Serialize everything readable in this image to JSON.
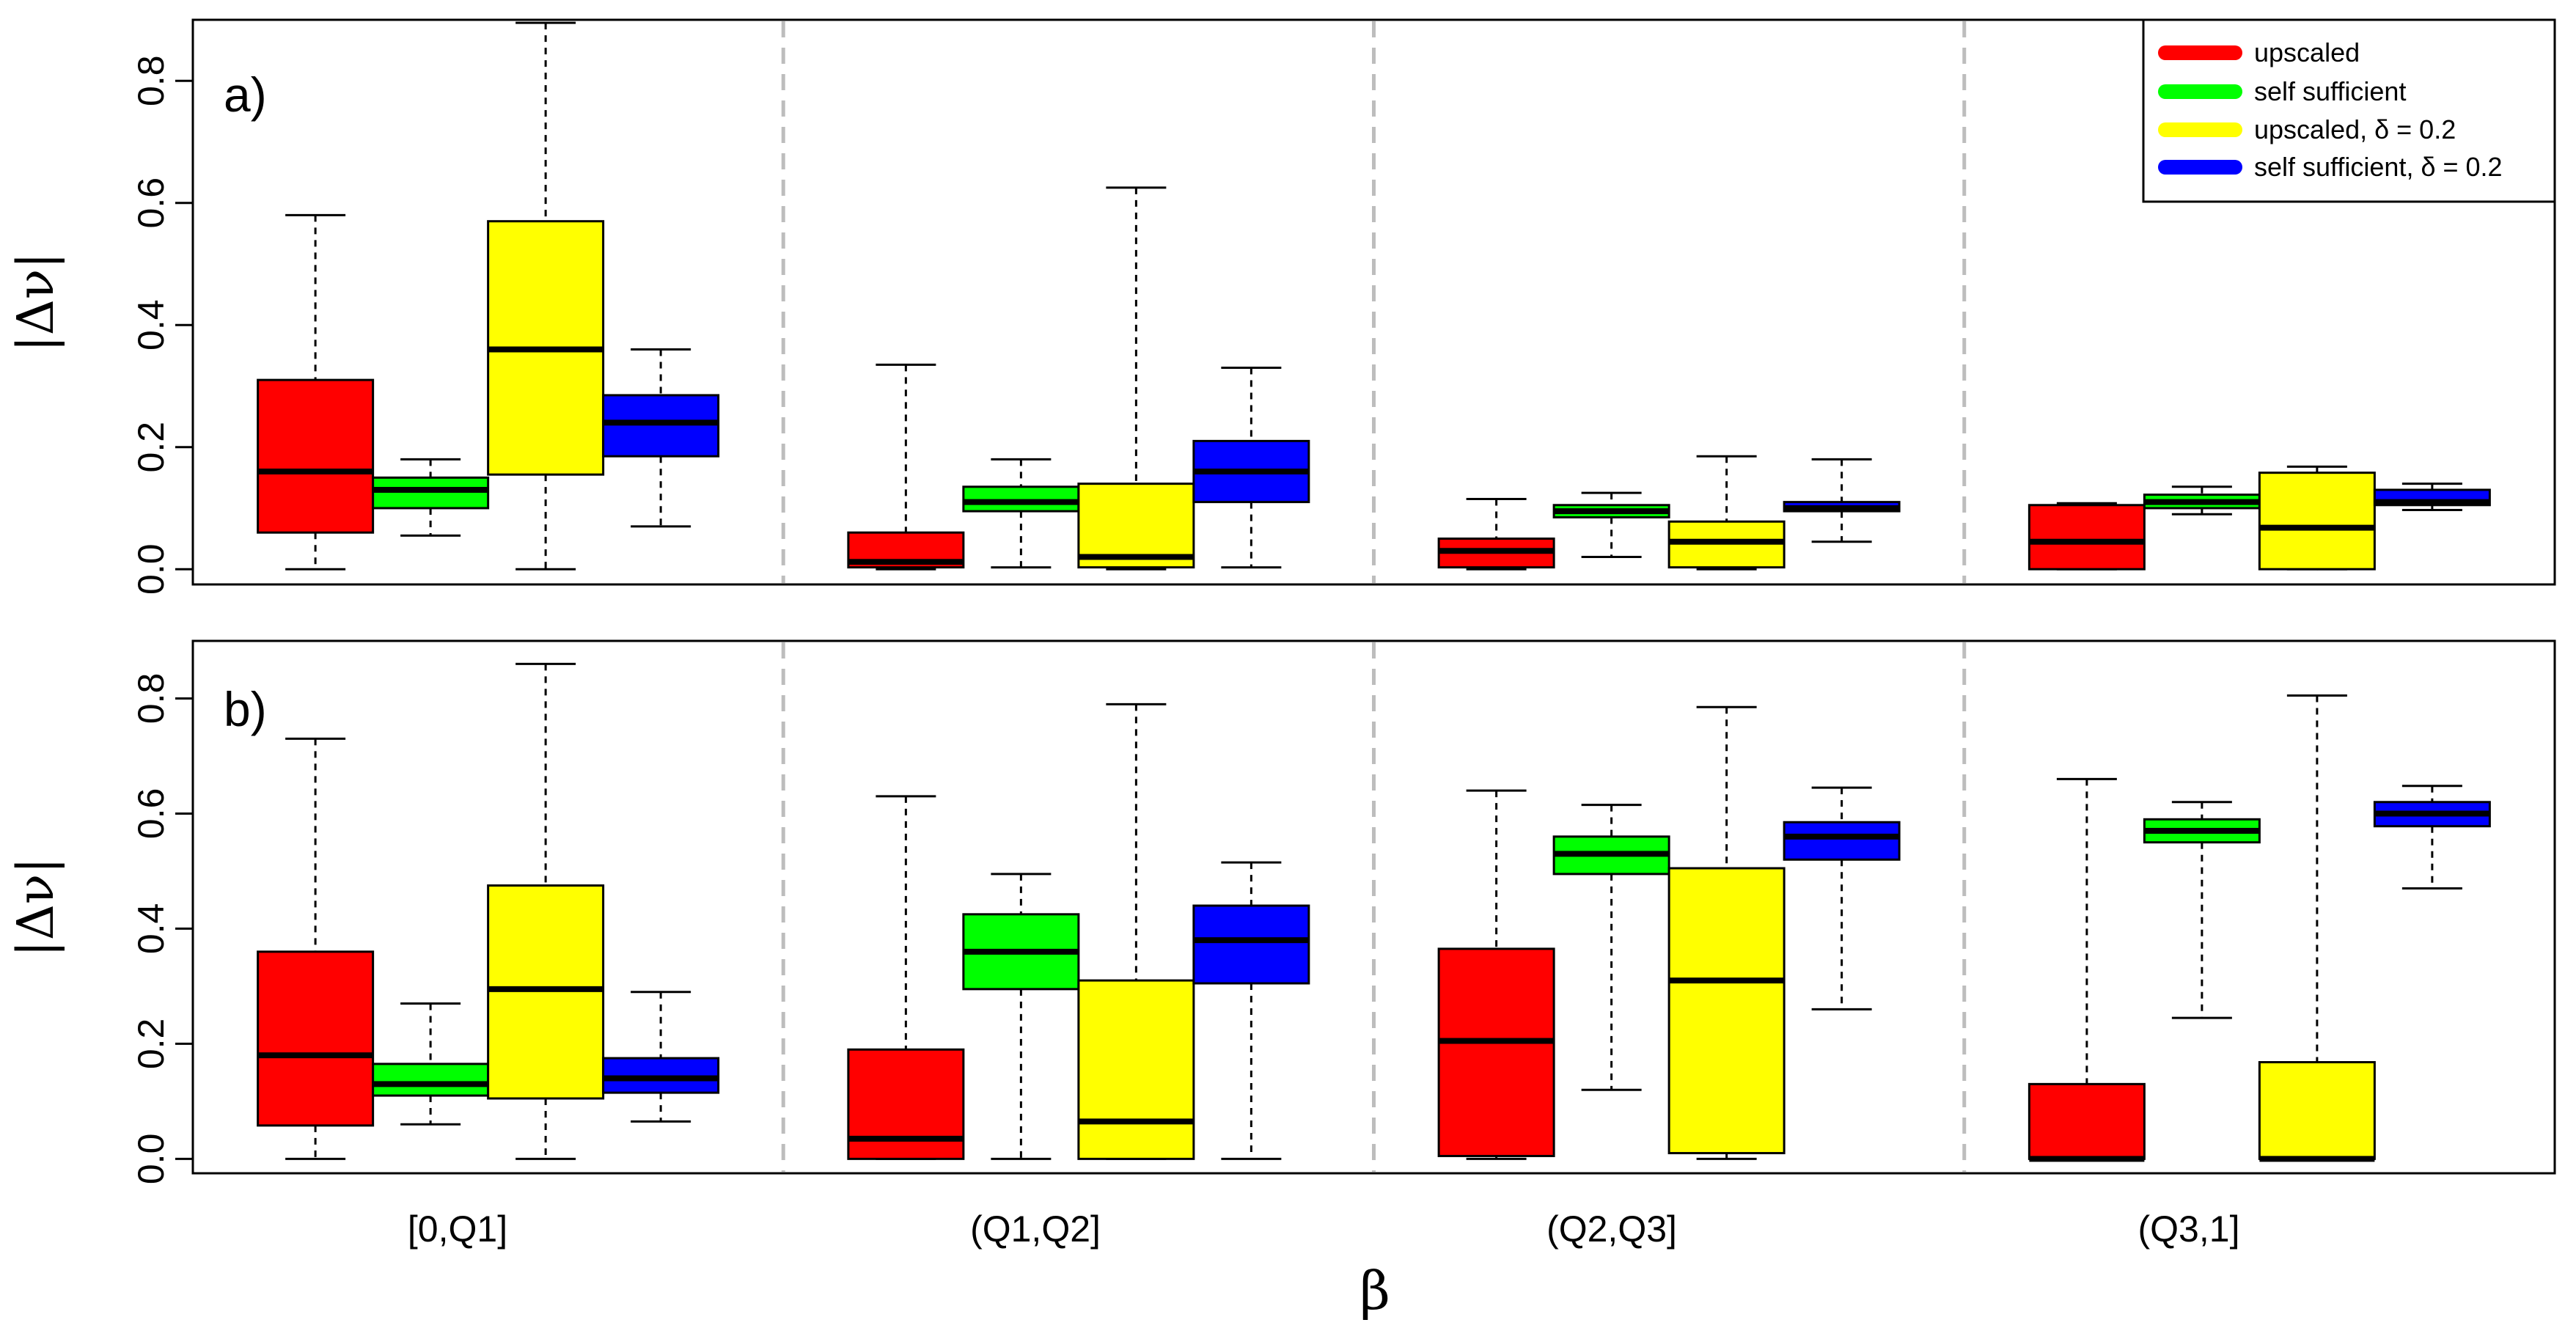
{
  "chart_data": {
    "type": "boxplot",
    "xlabel": "β",
    "ylabel": "|Δν|",
    "categories": [
      "[0,Q1]",
      "(Q1,Q2]",
      "(Q2,Q3]",
      "(Q3,1]"
    ],
    "yticks": [
      "0.0",
      "0.2",
      "0.4",
      "0.6",
      "0.8"
    ],
    "ytick_values": [
      0,
      0.2,
      0.4,
      0.6,
      0.8
    ],
    "ylim": [
      -0.025,
      0.9
    ],
    "legend": {
      "position": "top-right",
      "entries": [
        {
          "label": "upscaled",
          "color": "#ff0000"
        },
        {
          "label": "self sufficient",
          "color": "#00ff00"
        },
        {
          "label": "upscaled, δ = 0.2",
          "color": "#ffff00"
        },
        {
          "label": "self sufficient, δ = 0.2",
          "color": "#0000ff"
        }
      ]
    },
    "series_colors": [
      "#ff0000",
      "#00ff00",
      "#ffff00",
      "#0000ff"
    ],
    "panels": [
      {
        "label": "a)",
        "groups": [
          [
            {
              "min": 0.0,
              "q1": 0.06,
              "median": 0.16,
              "q3": 0.31,
              "max": 0.58
            },
            {
              "min": 0.055,
              "q1": 0.1,
              "median": 0.13,
              "q3": 0.15,
              "max": 0.18
            },
            {
              "min": 0.0,
              "q1": 0.155,
              "median": 0.36,
              "q3": 0.57,
              "max": 0.895
            },
            {
              "min": 0.07,
              "q1": 0.185,
              "median": 0.24,
              "q3": 0.285,
              "max": 0.36
            }
          ],
          [
            {
              "min": 0.0,
              "q1": 0.003,
              "median": 0.012,
              "q3": 0.06,
              "max": 0.335
            },
            {
              "min": 0.003,
              "q1": 0.095,
              "median": 0.11,
              "q3": 0.135,
              "max": 0.18
            },
            {
              "min": 0.0,
              "q1": 0.003,
              "median": 0.02,
              "q3": 0.14,
              "max": 0.625
            },
            {
              "min": 0.003,
              "q1": 0.11,
              "median": 0.16,
              "q3": 0.21,
              "max": 0.33
            }
          ],
          [
            {
              "min": 0.0,
              "q1": 0.003,
              "median": 0.03,
              "q3": 0.05,
              "max": 0.115
            },
            {
              "min": 0.02,
              "q1": 0.085,
              "median": 0.095,
              "q3": 0.105,
              "max": 0.125
            },
            {
              "min": 0.0,
              "q1": 0.003,
              "median": 0.045,
              "q3": 0.078,
              "max": 0.185
            },
            {
              "min": 0.045,
              "q1": 0.095,
              "median": 0.1,
              "q3": 0.11,
              "max": 0.18
            }
          ],
          [
            {
              "min": 0.0,
              "q1": 0.0,
              "median": 0.045,
              "q3": 0.105,
              "max": 0.108
            },
            {
              "min": 0.09,
              "q1": 0.1,
              "median": 0.11,
              "q3": 0.122,
              "max": 0.135
            },
            {
              "min": 0.0,
              "q1": 0.0,
              "median": 0.068,
              "q3": 0.158,
              "max": 0.168
            },
            {
              "min": 0.097,
              "q1": 0.105,
              "median": 0.11,
              "q3": 0.13,
              "max": 0.14
            }
          ]
        ]
      },
      {
        "label": "b)",
        "groups": [
          [
            {
              "min": 0.0,
              "q1": 0.058,
              "median": 0.18,
              "q3": 0.36,
              "max": 0.73
            },
            {
              "min": 0.06,
              "q1": 0.11,
              "median": 0.13,
              "q3": 0.165,
              "max": 0.27
            },
            {
              "min": 0.0,
              "q1": 0.105,
              "median": 0.295,
              "q3": 0.475,
              "max": 0.86
            },
            {
              "min": 0.065,
              "q1": 0.115,
              "median": 0.14,
              "q3": 0.175,
              "max": 0.29
            }
          ],
          [
            {
              "min": 0.0,
              "q1": 0.0,
              "median": 0.035,
              "q3": 0.19,
              "max": 0.63
            },
            {
              "min": 0.0,
              "q1": 0.295,
              "median": 0.36,
              "q3": 0.425,
              "max": 0.495
            },
            {
              "min": 0.0,
              "q1": 0.0,
              "median": 0.065,
              "q3": 0.31,
              "max": 0.79
            },
            {
              "min": 0.0,
              "q1": 0.305,
              "median": 0.38,
              "q3": 0.44,
              "max": 0.515
            }
          ],
          [
            {
              "min": 0.0,
              "q1": 0.005,
              "median": 0.205,
              "q3": 0.365,
              "max": 0.64
            },
            {
              "min": 0.12,
              "q1": 0.495,
              "median": 0.53,
              "q3": 0.56,
              "max": 0.615
            },
            {
              "min": 0.0,
              "q1": 0.01,
              "median": 0.31,
              "q3": 0.505,
              "max": 0.785
            },
            {
              "min": 0.26,
              "q1": 0.52,
              "median": 0.56,
              "q3": 0.585,
              "max": 0.645
            }
          ],
          [
            {
              "min": 0.0,
              "q1": 0.0,
              "median": 0.0,
              "q3": 0.13,
              "max": 0.66
            },
            {
              "min": 0.245,
              "q1": 0.55,
              "median": 0.57,
              "q3": 0.59,
              "max": 0.62
            },
            {
              "min": 0.0,
              "q1": 0.0,
              "median": 0.0,
              "q3": 0.168,
              "max": 0.805
            },
            {
              "min": 0.47,
              "q1": 0.578,
              "median": 0.6,
              "q3": 0.62,
              "max": 0.648
            }
          ]
        ]
      }
    ]
  }
}
